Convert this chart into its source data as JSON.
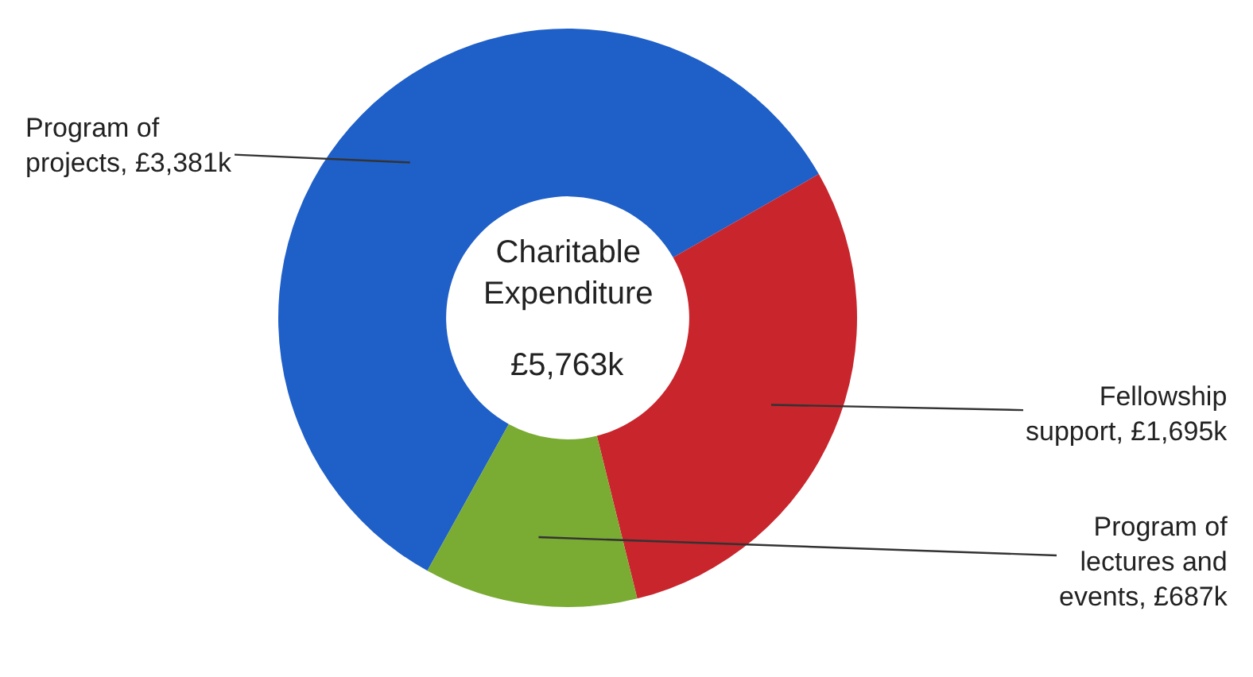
{
  "chart_data": {
    "type": "donut",
    "categories": [
      "Program of projects",
      "Fellowship support",
      "Program of lectures and events"
    ],
    "values": [
      3381,
      1695,
      687
    ],
    "value_labels": [
      "£3,381k",
      "£1,695k",
      "£687k"
    ],
    "colors": [
      "#1f5fc8",
      "#c8252d",
      "#7aab32"
    ],
    "annotations": [
      "Charitable Expenditure",
      "£5,763k"
    ],
    "legend": false
  }
}
